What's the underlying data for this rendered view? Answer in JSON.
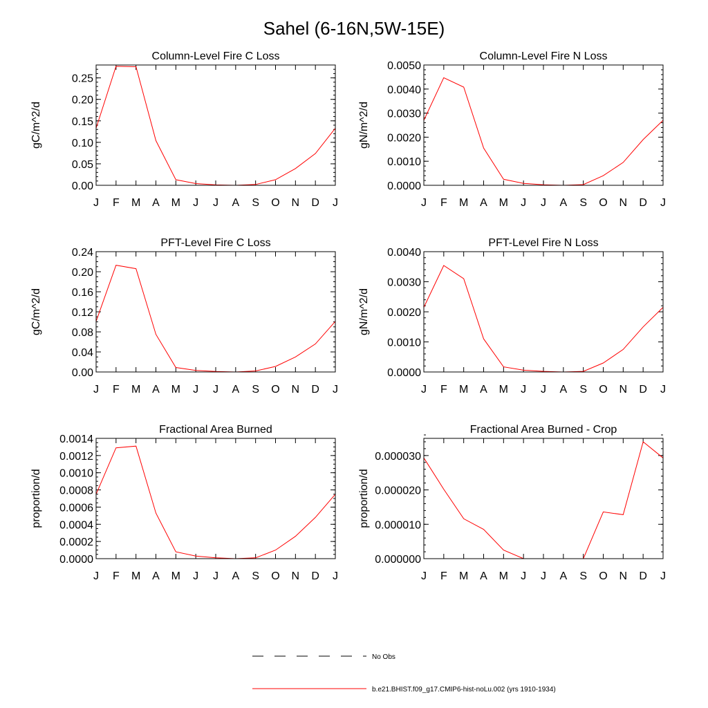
{
  "suptitle": "Sahel (6-16N,5W-15E)",
  "month_labels": [
    "J",
    "F",
    "M",
    "A",
    "M",
    "J",
    "J",
    "A",
    "S",
    "O",
    "N",
    "D",
    "J"
  ],
  "chart_data": [
    {
      "type": "line",
      "title": "Column-Level Fire C Loss",
      "ylabel": "gC/m^2/d",
      "xlabel": "",
      "ylim": [
        0,
        0.28
      ],
      "yticks": [
        0.0,
        0.05,
        0.1,
        0.15,
        0.2,
        0.25
      ],
      "yticklabels": [
        "0.00",
        "0.05",
        "0.10",
        "0.15",
        "0.20",
        "0.25"
      ],
      "ytick_minor": 0.01,
      "x": [
        "J",
        "F",
        "M",
        "A",
        "M",
        "J",
        "J",
        "A",
        "S",
        "O",
        "N",
        "D",
        "J"
      ],
      "series": [
        {
          "values": [
            0.133,
            0.277,
            0.276,
            0.104,
            0.013,
            0.004,
            0.001,
            0.0,
            0.002,
            0.013,
            0.039,
            0.074,
            0.133
          ]
        }
      ]
    },
    {
      "type": "line",
      "title": "Column-Level Fire N Loss",
      "ylabel": "gN/m^2/d",
      "xlabel": "",
      "ylim": [
        0,
        0.005
      ],
      "yticks": [
        0.0,
        0.001,
        0.002,
        0.003,
        0.004,
        0.005
      ],
      "yticklabels": [
        "0.0000",
        "0.0010",
        "0.0020",
        "0.0030",
        "0.0040",
        "0.0050"
      ],
      "ytick_minor": 0.0002,
      "x": [
        "J",
        "F",
        "M",
        "A",
        "M",
        "J",
        "J",
        "A",
        "S",
        "O",
        "N",
        "D",
        "J"
      ],
      "series": [
        {
          "values": [
            0.0027,
            0.00447,
            0.00408,
            0.00155,
            0.00025,
            8e-05,
            2e-05,
            0.0,
            3e-05,
            0.0004,
            0.00095,
            0.0019,
            0.0027
          ]
        }
      ]
    },
    {
      "type": "line",
      "title": "PFT-Level Fire C Loss",
      "ylabel": "gC/m^2/d",
      "xlabel": "",
      "ylim": [
        0,
        0.24
      ],
      "yticks": [
        0.0,
        0.04,
        0.08,
        0.12,
        0.16,
        0.2,
        0.24
      ],
      "yticklabels": [
        "0.00",
        "0.04",
        "0.08",
        "0.12",
        "0.16",
        "0.20",
        "0.24"
      ],
      "ytick_minor": 0.01,
      "x": [
        "J",
        "F",
        "M",
        "A",
        "M",
        "J",
        "J",
        "A",
        "S",
        "O",
        "N",
        "D",
        "J"
      ],
      "series": [
        {
          "values": [
            0.101,
            0.213,
            0.206,
            0.075,
            0.009,
            0.003,
            0.001,
            0.0,
            0.002,
            0.011,
            0.03,
            0.056,
            0.101
          ]
        }
      ]
    },
    {
      "type": "line",
      "title": "PFT-Level Fire N Loss",
      "ylabel": "gN/m^2/d",
      "xlabel": "",
      "ylim": [
        0,
        0.004
      ],
      "yticks": [
        0.0,
        0.001,
        0.002,
        0.003,
        0.004
      ],
      "yticklabels": [
        "0.0000",
        "0.0010",
        "0.0020",
        "0.0030",
        "0.0040"
      ],
      "ytick_minor": 0.0002,
      "x": [
        "J",
        "F",
        "M",
        "A",
        "M",
        "J",
        "J",
        "A",
        "S",
        "O",
        "N",
        "D",
        "J"
      ],
      "series": [
        {
          "values": [
            0.00215,
            0.00354,
            0.0031,
            0.0011,
            0.00017,
            6e-05,
            2e-05,
            0.0,
            2e-05,
            0.0003,
            0.00075,
            0.0015,
            0.00215
          ]
        }
      ]
    },
    {
      "type": "line",
      "title": "Fractional Area Burned",
      "ylabel": "proportion/d",
      "xlabel": "",
      "ylim": [
        0,
        0.0014
      ],
      "yticks": [
        0.0,
        0.0002,
        0.0004,
        0.0006,
        0.0008,
        0.001,
        0.0012,
        0.0014
      ],
      "yticklabels": [
        "0.0000",
        "0.0002",
        "0.0004",
        "0.0006",
        "0.0008",
        "0.0010",
        "0.0012",
        "0.0014"
      ],
      "ytick_minor": 5e-05,
      "x": [
        "J",
        "F",
        "M",
        "A",
        "M",
        "J",
        "J",
        "A",
        "S",
        "O",
        "N",
        "D",
        "J"
      ],
      "series": [
        {
          "values": [
            0.00075,
            0.00129,
            0.00131,
            0.00053,
            8e-05,
            3e-05,
            1e-05,
            0.0,
            1e-05,
            0.0001,
            0.00026,
            0.00048,
            0.00075
          ]
        }
      ]
    },
    {
      "type": "line",
      "title": "Fractional Area Burned - Crop",
      "ylabel": "proportion/d",
      "xlabel": "",
      "ylim": [
        0,
        3.5e-05
      ],
      "yticks": [
        0.0,
        1e-05,
        2e-05,
        3e-05
      ],
      "yticklabels": [
        "0.000000",
        "0.000010",
        "0.000020",
        "0.000030"
      ],
      "ytick_minor": 2e-06,
      "x": [
        "J",
        "F",
        "M",
        "A",
        "M",
        "J",
        "J",
        "A",
        "S",
        "O",
        "N",
        "D",
        "J"
      ],
      "series": [
        {
          "values": [
            2.93e-05,
            2.02e-05,
            1.16e-05,
            8.5e-06,
            2.5e-06,
            0.0,
            0.0,
            0.0,
            0.0,
            1.36e-05,
            1.28e-05,
            3.4e-05,
            2.93e-05
          ]
        }
      ]
    }
  ],
  "legend": {
    "items": [
      {
        "label": "No Obs",
        "style": "dashed",
        "color": "#000000"
      },
      {
        "label": "b.e21.BHIST.f09_g17.CMIP6-hist-noLu.002 (yrs 1910-1934)",
        "style": "solid",
        "color": "#ff0000"
      }
    ]
  },
  "colors": {
    "series": "#ff0000",
    "axes": "#000000",
    "background": "#ffffff"
  }
}
